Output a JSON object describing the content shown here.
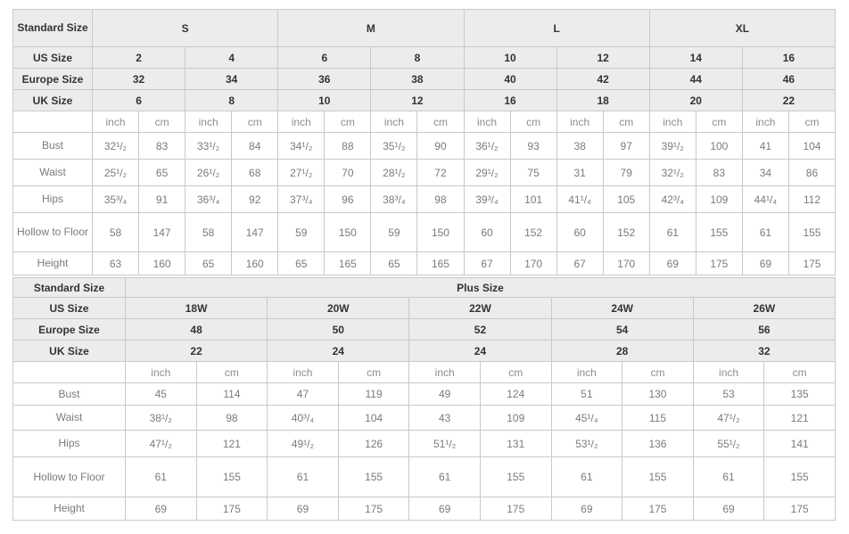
{
  "chart_data": [
    {
      "type": "table",
      "corner_label": "Standard Size",
      "group_headers": [
        "S",
        "M",
        "L",
        "XL"
      ],
      "size_rows": [
        {
          "label": "US Size",
          "values": [
            "2",
            "4",
            "6",
            "8",
            "10",
            "12",
            "14",
            "16"
          ]
        },
        {
          "label": "Europe Size",
          "values": [
            "32",
            "34",
            "36",
            "38",
            "40",
            "42",
            "44",
            "46"
          ]
        },
        {
          "label": "UK Size",
          "values": [
            "6",
            "8",
            "10",
            "12",
            "16",
            "18",
            "20",
            "22"
          ]
        }
      ],
      "unit_labels": [
        "inch",
        "cm"
      ],
      "measurement_rows": [
        {
          "label": "Bust",
          "values": [
            "32¹/₂",
            "83",
            "33¹/₂",
            "84",
            "34¹/₂",
            "88",
            "35¹/₂",
            "90",
            "36¹/₂",
            "93",
            "38",
            "97",
            "39¹/₂",
            "100",
            "41",
            "104"
          ]
        },
        {
          "label": "Waist",
          "values": [
            "25¹/₂",
            "65",
            "26¹/₂",
            "68",
            "27¹/₂",
            "70",
            "28¹/₂",
            "72",
            "29¹/₂",
            "75",
            "31",
            "79",
            "32¹/₂",
            "83",
            "34",
            "86"
          ]
        },
        {
          "label": "Hips",
          "values": [
            "35³/₄",
            "91",
            "36³/₄",
            "92",
            "37³/₄",
            "96",
            "38³/₄",
            "98",
            "39³/₄",
            "101",
            "41¹/₄",
            "105",
            "42³/₄",
            "109",
            "44¹/₄",
            "112"
          ]
        },
        {
          "label": "Hollow to Floor",
          "values": [
            "58",
            "147",
            "58",
            "147",
            "59",
            "150",
            "59",
            "150",
            "60",
            "152",
            "60",
            "152",
            "61",
            "155",
            "61",
            "155"
          ]
        },
        {
          "label": "Height",
          "values": [
            "63",
            "160",
            "65",
            "160",
            "65",
            "165",
            "65",
            "165",
            "67",
            "170",
            "67",
            "170",
            "69",
            "175",
            "69",
            "175"
          ]
        }
      ]
    },
    {
      "type": "table",
      "corner_label": "Standard Size",
      "group_headers": [
        "Plus Size"
      ],
      "size_rows": [
        {
          "label": "US Size",
          "values": [
            "18W",
            "20W",
            "22W",
            "24W",
            "26W"
          ]
        },
        {
          "label": "Europe Size",
          "values": [
            "48",
            "50",
            "52",
            "54",
            "56"
          ]
        },
        {
          "label": "UK Size",
          "values": [
            "22",
            "24",
            "24",
            "28",
            "32"
          ]
        }
      ],
      "unit_labels": [
        "inch",
        "cm"
      ],
      "measurement_rows": [
        {
          "label": "Bust",
          "values": [
            "45",
            "114",
            "47",
            "119",
            "49",
            "124",
            "51",
            "130",
            "53",
            "135"
          ]
        },
        {
          "label": "Waist",
          "values": [
            "38¹/₂",
            "98",
            "40³/₄",
            "104",
            "43",
            "109",
            "45¹/₄",
            "115",
            "47¹/₂",
            "121"
          ]
        },
        {
          "label": "Hips",
          "values": [
            "47¹/₂",
            "121",
            "49¹/₂",
            "126",
            "51¹/₂",
            "131",
            "53¹/₂",
            "136",
            "55¹/₂",
            "141"
          ]
        },
        {
          "label": "Hollow to Floor",
          "values": [
            "61",
            "155",
            "61",
            "155",
            "61",
            "155",
            "61",
            "155",
            "61",
            "155"
          ]
        },
        {
          "label": "Height",
          "values": [
            "69",
            "175",
            "69",
            "175",
            "69",
            "175",
            "69",
            "175",
            "69",
            "175"
          ]
        }
      ]
    }
  ],
  "colors": {
    "header_background": "#ececec",
    "border": "#c9c9c9",
    "header_text": "#333333",
    "data_text": "#7b7b7b"
  }
}
